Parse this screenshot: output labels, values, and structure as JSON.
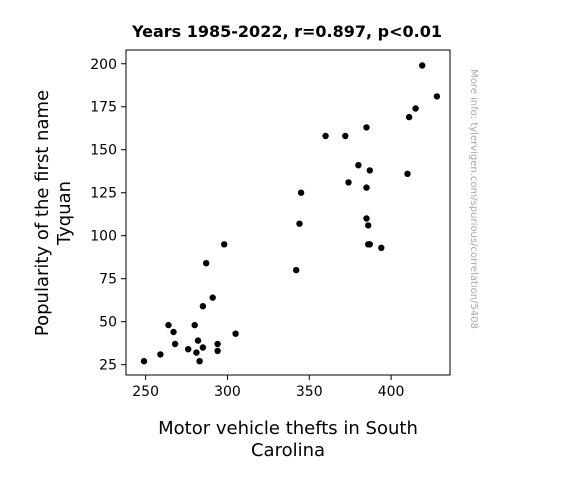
{
  "chart_data": {
    "type": "scatter",
    "title": "Years 1985-2022, r=0.897, p<0.01",
    "xlabel_lines": [
      "Motor vehicle thefts in South",
      "Carolina"
    ],
    "ylabel_lines": [
      "Popularity of the first name",
      "Tyquan"
    ],
    "side_note": "More info: tylervigen.com/spurious/correlation/5408",
    "xlim": [
      238,
      436
    ],
    "ylim": [
      19,
      208
    ],
    "xticks": [
      250,
      300,
      350,
      400
    ],
    "yticks": [
      25,
      50,
      75,
      100,
      125,
      150,
      175,
      200
    ],
    "grid": false,
    "legend": "none",
    "marker_color": "#000000",
    "points": [
      {
        "x": 249,
        "y": 27
      },
      {
        "x": 259,
        "y": 31
      },
      {
        "x": 264,
        "y": 48
      },
      {
        "x": 267,
        "y": 44
      },
      {
        "x": 268,
        "y": 37
      },
      {
        "x": 276,
        "y": 34
      },
      {
        "x": 280,
        "y": 48
      },
      {
        "x": 281,
        "y": 32
      },
      {
        "x": 282,
        "y": 39
      },
      {
        "x": 283,
        "y": 27
      },
      {
        "x": 285,
        "y": 35
      },
      {
        "x": 285,
        "y": 59
      },
      {
        "x": 287,
        "y": 84
      },
      {
        "x": 291,
        "y": 64
      },
      {
        "x": 294,
        "y": 37
      },
      {
        "x": 294,
        "y": 33
      },
      {
        "x": 298,
        "y": 95
      },
      {
        "x": 305,
        "y": 43
      },
      {
        "x": 342,
        "y": 80
      },
      {
        "x": 344,
        "y": 107
      },
      {
        "x": 345,
        "y": 125
      },
      {
        "x": 360,
        "y": 158
      },
      {
        "x": 372,
        "y": 158
      },
      {
        "x": 374,
        "y": 131
      },
      {
        "x": 380,
        "y": 141
      },
      {
        "x": 385,
        "y": 163
      },
      {
        "x": 385,
        "y": 128
      },
      {
        "x": 385,
        "y": 110
      },
      {
        "x": 386,
        "y": 106
      },
      {
        "x": 386,
        "y": 95
      },
      {
        "x": 387,
        "y": 95
      },
      {
        "x": 387,
        "y": 138
      },
      {
        "x": 394,
        "y": 93
      },
      {
        "x": 410,
        "y": 136
      },
      {
        "x": 411,
        "y": 169
      },
      {
        "x": 415,
        "y": 174
      },
      {
        "x": 419,
        "y": 199
      },
      {
        "x": 428,
        "y": 181
      }
    ]
  }
}
